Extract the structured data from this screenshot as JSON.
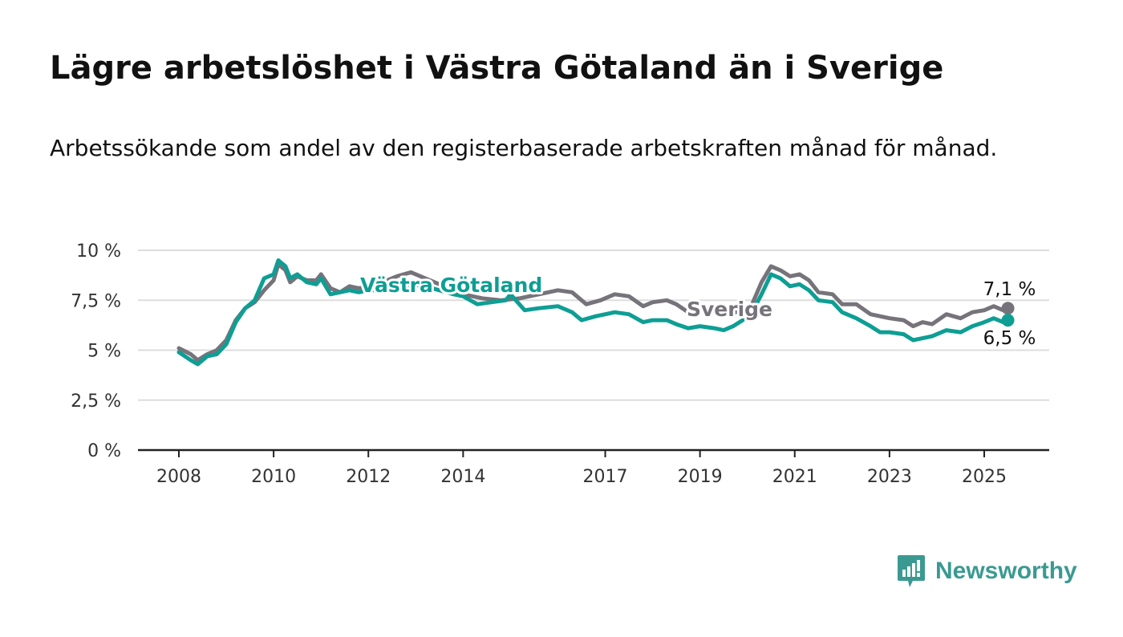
{
  "title": "Lägre arbetslöshet i Västra Götaland än i Sverige",
  "subtitle": "Arbetssökande som andel av den registerbaserade arbetskraften månad för månad.",
  "brand": {
    "name": "Newsworthy",
    "icon": "newsworthy-logo-icon",
    "color": "#3a9a92"
  },
  "colors": {
    "vg": "#0e9e94",
    "sverige": "#76737a",
    "grid": "#dddddd",
    "axis": "#222222"
  },
  "chart_data": {
    "type": "line",
    "ylim": [
      0,
      10
    ],
    "xlim": [
      2008,
      2025.85
    ],
    "grid": true,
    "y_ticks": [
      {
        "value": 0,
        "label": "0 %"
      },
      {
        "value": 2.5,
        "label": "2,5 %"
      },
      {
        "value": 5,
        "label": "5 %"
      },
      {
        "value": 7.5,
        "label": "7,5 %"
      },
      {
        "value": 10,
        "label": "10 %"
      }
    ],
    "x_ticks": [
      {
        "value": 2008,
        "label": "2008"
      },
      {
        "value": 2010,
        "label": "2010"
      },
      {
        "value": 2012,
        "label": "2012"
      },
      {
        "value": 2014,
        "label": "2014"
      },
      {
        "value": 2017,
        "label": "2017"
      },
      {
        "value": 2019,
        "label": "2019"
      },
      {
        "value": 2021,
        "label": "2021"
      },
      {
        "value": 2023,
        "label": "2023"
      },
      {
        "value": 2025,
        "label": "2025"
      }
    ],
    "series": [
      {
        "name": "Sverige",
        "color": "#76737a",
        "end_label": "7,1 %",
        "points": [
          [
            2008.0,
            5.1
          ],
          [
            2008.25,
            4.8
          ],
          [
            2008.4,
            4.5
          ],
          [
            2008.6,
            4.8
          ],
          [
            2008.8,
            5.0
          ],
          [
            2009.0,
            5.5
          ],
          [
            2009.2,
            6.5
          ],
          [
            2009.4,
            7.1
          ],
          [
            2009.6,
            7.4
          ],
          [
            2009.8,
            8.0
          ],
          [
            2010.0,
            8.5
          ],
          [
            2010.1,
            9.3
          ],
          [
            2010.25,
            9.0
          ],
          [
            2010.35,
            8.4
          ],
          [
            2010.5,
            8.7
          ],
          [
            2010.7,
            8.5
          ],
          [
            2010.9,
            8.5
          ],
          [
            2011.0,
            8.8
          ],
          [
            2011.2,
            8.1
          ],
          [
            2011.4,
            7.9
          ],
          [
            2011.6,
            8.2
          ],
          [
            2011.8,
            8.1
          ],
          [
            2012.0,
            8.2
          ],
          [
            2012.3,
            8.4
          ],
          [
            2012.6,
            8.7
          ],
          [
            2012.9,
            8.9
          ],
          [
            2013.2,
            8.6
          ],
          [
            2013.5,
            8.3
          ],
          [
            2013.8,
            8.0
          ],
          [
            2014.0,
            7.8
          ],
          [
            2014.4,
            7.6
          ],
          [
            2014.8,
            7.5
          ],
          [
            2015.2,
            7.6
          ],
          [
            2015.6,
            7.8
          ],
          [
            2016.0,
            8.0
          ],
          [
            2016.3,
            7.9
          ],
          [
            2016.6,
            7.3
          ],
          [
            2016.9,
            7.5
          ],
          [
            2017.0,
            7.6
          ],
          [
            2017.2,
            7.8
          ],
          [
            2017.5,
            7.7
          ],
          [
            2017.8,
            7.2
          ],
          [
            2018.0,
            7.4
          ],
          [
            2018.3,
            7.5
          ],
          [
            2018.5,
            7.3
          ],
          [
            2018.75,
            6.9
          ],
          [
            2019.0,
            7.0
          ],
          [
            2019.3,
            6.9
          ],
          [
            2019.6,
            6.8
          ],
          [
            2019.9,
            7.0
          ],
          [
            2020.1,
            7.3
          ],
          [
            2020.3,
            8.4
          ],
          [
            2020.5,
            9.2
          ],
          [
            2020.7,
            9.0
          ],
          [
            2020.9,
            8.7
          ],
          [
            2021.1,
            8.8
          ],
          [
            2021.3,
            8.5
          ],
          [
            2021.5,
            7.9
          ],
          [
            2021.8,
            7.8
          ],
          [
            2022.0,
            7.3
          ],
          [
            2022.3,
            7.3
          ],
          [
            2022.6,
            6.8
          ],
          [
            2022.8,
            6.7
          ],
          [
            2023.0,
            6.6
          ],
          [
            2023.3,
            6.5
          ],
          [
            2023.5,
            6.2
          ],
          [
            2023.7,
            6.4
          ],
          [
            2023.9,
            6.3
          ],
          [
            2024.2,
            6.8
          ],
          [
            2024.5,
            6.6
          ],
          [
            2024.75,
            6.9
          ],
          [
            2025.0,
            7.0
          ],
          [
            2025.2,
            7.2
          ],
          [
            2025.4,
            7.0
          ],
          [
            2025.5,
            7.1
          ]
        ]
      },
      {
        "name": "Västra Götaland",
        "color": "#0e9e94",
        "end_label": "6,5 %",
        "points": [
          [
            2008.0,
            4.9
          ],
          [
            2008.25,
            4.5
          ],
          [
            2008.4,
            4.3
          ],
          [
            2008.6,
            4.7
          ],
          [
            2008.8,
            4.8
          ],
          [
            2009.0,
            5.3
          ],
          [
            2009.2,
            6.4
          ],
          [
            2009.4,
            7.1
          ],
          [
            2009.6,
            7.5
          ],
          [
            2009.8,
            8.6
          ],
          [
            2010.0,
            8.8
          ],
          [
            2010.1,
            9.5
          ],
          [
            2010.25,
            9.2
          ],
          [
            2010.35,
            8.6
          ],
          [
            2010.5,
            8.8
          ],
          [
            2010.7,
            8.4
          ],
          [
            2010.9,
            8.3
          ],
          [
            2011.0,
            8.6
          ],
          [
            2011.2,
            7.8
          ],
          [
            2011.4,
            7.9
          ],
          [
            2011.6,
            8.0
          ],
          [
            2011.8,
            7.9
          ],
          [
            2012.0,
            8.0
          ],
          [
            2012.3,
            8.0
          ],
          [
            2012.6,
            8.1
          ],
          [
            2012.9,
            8.3
          ],
          [
            2013.2,
            8.2
          ],
          [
            2013.5,
            8.0
          ],
          [
            2013.8,
            7.8
          ],
          [
            2014.0,
            7.7
          ],
          [
            2014.3,
            7.3
          ],
          [
            2014.6,
            7.4
          ],
          [
            2014.9,
            7.5
          ],
          [
            2015.0,
            7.8
          ],
          [
            2015.3,
            7.0
          ],
          [
            2015.6,
            7.1
          ],
          [
            2016.0,
            7.2
          ],
          [
            2016.3,
            6.9
          ],
          [
            2016.5,
            6.5
          ],
          [
            2016.8,
            6.7
          ],
          [
            2017.2,
            6.9
          ],
          [
            2017.5,
            6.8
          ],
          [
            2017.8,
            6.4
          ],
          [
            2018.0,
            6.5
          ],
          [
            2018.3,
            6.5
          ],
          [
            2018.5,
            6.3
          ],
          [
            2018.75,
            6.1
          ],
          [
            2019.0,
            6.2
          ],
          [
            2019.3,
            6.1
          ],
          [
            2019.5,
            6.0
          ],
          [
            2019.7,
            6.2
          ],
          [
            2019.9,
            6.5
          ],
          [
            2020.1,
            6.9
          ],
          [
            2020.3,
            7.8
          ],
          [
            2020.5,
            8.8
          ],
          [
            2020.7,
            8.6
          ],
          [
            2020.9,
            8.2
          ],
          [
            2021.1,
            8.3
          ],
          [
            2021.3,
            8.0
          ],
          [
            2021.5,
            7.5
          ],
          [
            2021.8,
            7.4
          ],
          [
            2022.0,
            6.9
          ],
          [
            2022.3,
            6.6
          ],
          [
            2022.6,
            6.2
          ],
          [
            2022.8,
            5.9
          ],
          [
            2023.0,
            5.9
          ],
          [
            2023.3,
            5.8
          ],
          [
            2023.5,
            5.5
          ],
          [
            2023.7,
            5.6
          ],
          [
            2023.9,
            5.7
          ],
          [
            2024.2,
            6.0
          ],
          [
            2024.5,
            5.9
          ],
          [
            2024.75,
            6.2
          ],
          [
            2025.0,
            6.4
          ],
          [
            2025.2,
            6.6
          ],
          [
            2025.4,
            6.4
          ],
          [
            2025.5,
            6.5
          ]
        ]
      }
    ]
  }
}
